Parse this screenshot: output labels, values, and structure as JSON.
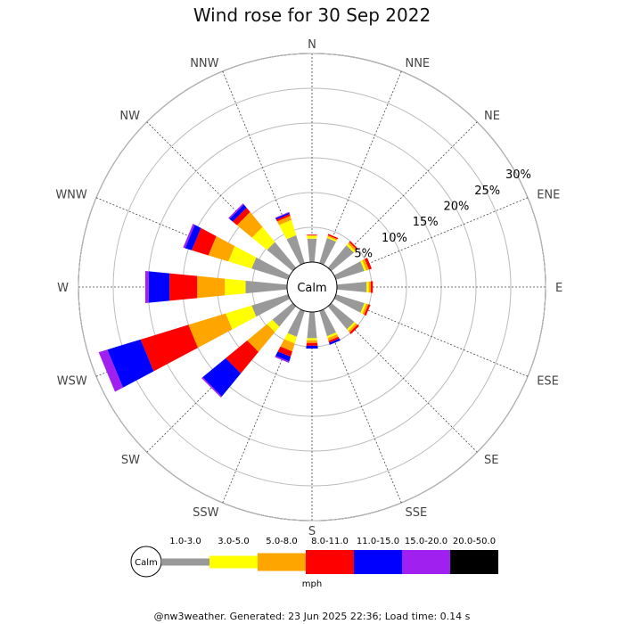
{
  "title": "Wind rose for 30 Sep 2022",
  "footer": "@nw3weather. Generated: 23 Jun 2025 22:36; Load time: 0.14 s",
  "chart_data": {
    "type": "wind-rose",
    "title": "Wind rose for 30 Sep 2022",
    "directions": [
      "N",
      "NNE",
      "NE",
      "ENE",
      "E",
      "ESE",
      "SE",
      "SSE",
      "S",
      "SSW",
      "SW",
      "WSW",
      "W",
      "WNW",
      "NW",
      "NNW"
    ],
    "radial_ticks": [
      "5%",
      "10%",
      "15%",
      "20%",
      "25%",
      "30%"
    ],
    "radial_tick_values": [
      5,
      10,
      15,
      20,
      25,
      30
    ],
    "radial_max": 30,
    "calm_label": "Calm",
    "calm_radius": 2.5,
    "unit": "mph",
    "speed_bins": [
      {
        "label": "1.0-3.0",
        "color": "#999999"
      },
      {
        "label": "3.0-5.0",
        "color": "#ffff00"
      },
      {
        "label": "5.0-8.0",
        "color": "#ffa500"
      },
      {
        "label": "8.0-11.0",
        "color": "#ff0000"
      },
      {
        "label": "11.0-15.0",
        "color": "#0000ff"
      },
      {
        "label": "15.0-20.0",
        "color": "#a020f0"
      },
      {
        "label": "20.0-50.0",
        "color": "#000000"
      }
    ],
    "sectors": [
      {
        "direction": "N",
        "cumulative": [
          3.4,
          3.8,
          3.9,
          4.0
        ]
      },
      {
        "direction": "NNE",
        "cumulative": [
          3.8,
          4.0,
          4.2,
          4.4
        ]
      },
      {
        "direction": "NE",
        "cumulative": [
          4.2,
          4.5,
          4.8,
          5.0
        ]
      },
      {
        "direction": "ENE",
        "cumulative": [
          4.3,
          4.6,
          5.0,
          5.4
        ]
      },
      {
        "direction": "E",
        "cumulative": [
          4.3,
          4.6,
          4.9,
          5.2
        ]
      },
      {
        "direction": "ESE",
        "cumulative": [
          4.3,
          4.6,
          4.9,
          5.2
        ]
      },
      {
        "direction": "SE",
        "cumulative": [
          4.3,
          4.6,
          4.9,
          5.2
        ]
      },
      {
        "direction": "SSE",
        "cumulative": [
          3.8,
          4.1,
          4.5,
          4.8,
          5.1
        ]
      },
      {
        "direction": "S",
        "cumulative": [
          3.8,
          4.1,
          4.5,
          4.9,
          5.3
        ]
      },
      {
        "direction": "SSW",
        "cumulative": [
          3.9,
          4.9,
          6.1,
          6.9,
          7.6,
          7.8
        ]
      },
      {
        "direction": "SW",
        "cumulative": [
          3.8,
          4.8,
          8.5,
          12.5,
          16.8,
          17.0
        ]
      },
      {
        "direction": "WSW",
        "cumulative": [
          5.5,
          9.4,
          15.0,
          22.2,
          27.2,
          28.5
        ]
      },
      {
        "direction": "W",
        "cumulative": [
          6.0,
          9.0,
          13.0,
          17.0,
          20.0,
          20.5
        ]
      },
      {
        "direction": "WNW",
        "cumulative": [
          5.5,
          9.0,
          12.0,
          14.5,
          15.5,
          15.8
        ]
      },
      {
        "direction": "NW",
        "cumulative": [
          4.8,
          7.6,
          10.4,
          11.2,
          11.8,
          12.0
        ]
      },
      {
        "direction": "NNW",
        "cumulative": [
          4.2,
          6.5,
          7.1,
          7.4,
          7.6,
          7.7
        ]
      }
    ]
  }
}
